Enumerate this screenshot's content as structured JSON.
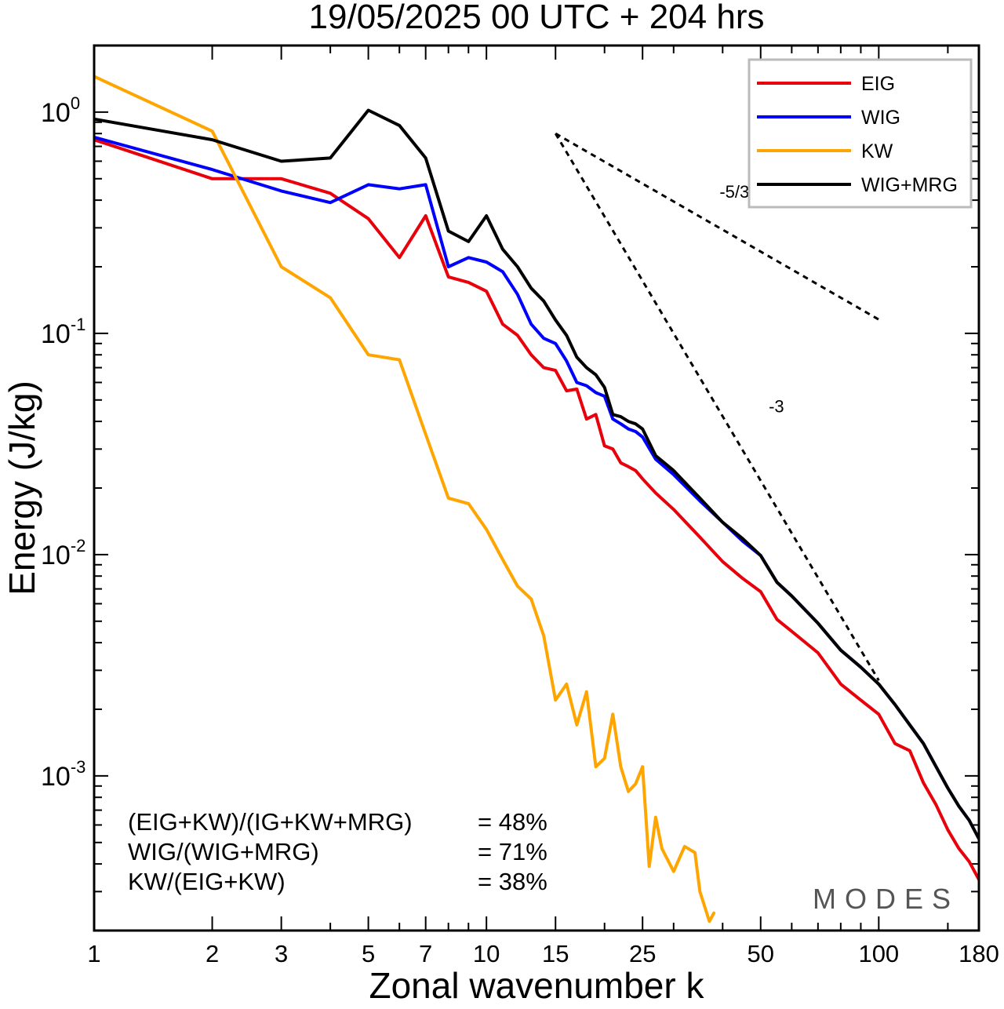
{
  "chart_data": {
    "type": "line",
    "title": "19/05/2025  00 UTC  + 204 hrs",
    "xlabel": "Zonal wavenumber k",
    "ylabel": "Energy (J/kg)",
    "xscale": "log",
    "yscale": "log",
    "xlim": [
      1,
      180
    ],
    "ylim": [
      0.0002,
      2.0
    ],
    "x_ticks": [
      1,
      2,
      3,
      5,
      7,
      10,
      15,
      25,
      50,
      100,
      180
    ],
    "x_tick_labels": [
      "1",
      "2",
      "3",
      "5",
      "7",
      "10",
      "15",
      "25",
      "50",
      "100",
      "180"
    ],
    "y_ticks": [
      {
        "value": 1,
        "base": "10",
        "exp": "0"
      },
      {
        "value": 0.1,
        "base": "10",
        "exp": "-1"
      },
      {
        "value": 0.01,
        "base": "10",
        "exp": "-2"
      },
      {
        "value": 0.001,
        "base": "10",
        "exp": "-3"
      }
    ],
    "grid": false,
    "legend_position": "top-right",
    "series": [
      {
        "name": "EIG",
        "color": "#e8000b",
        "x": [
          1,
          2,
          3,
          4,
          5,
          6,
          7,
          8,
          9,
          10,
          11,
          12,
          13,
          14,
          15,
          16,
          17,
          18,
          19,
          20,
          21,
          22,
          23,
          24,
          25,
          27,
          30,
          35,
          40,
          45,
          50,
          55,
          60,
          70,
          80,
          90,
          100,
          110,
          120,
          130,
          140,
          150,
          160,
          170,
          180
        ],
        "y": [
          0.75,
          0.5,
          0.5,
          0.43,
          0.33,
          0.22,
          0.34,
          0.18,
          0.17,
          0.155,
          0.11,
          0.098,
          0.08,
          0.07,
          0.068,
          0.055,
          0.056,
          0.041,
          0.043,
          0.031,
          0.03,
          0.026,
          0.025,
          0.024,
          0.022,
          0.019,
          0.016,
          0.012,
          0.0093,
          0.0078,
          0.0068,
          0.0051,
          0.0045,
          0.0036,
          0.0026,
          0.0022,
          0.0019,
          0.0014,
          0.0013,
          0.00093,
          0.00074,
          0.00057,
          0.00047,
          0.00041,
          0.00034
        ]
      },
      {
        "name": "WIG",
        "color": "#0000ff",
        "x": [
          1,
          2,
          3,
          4,
          5,
          6,
          7,
          8,
          9,
          10,
          11,
          12,
          13,
          14,
          15,
          16,
          17,
          18,
          19,
          20,
          21,
          22,
          23,
          24,
          25,
          27,
          30,
          35,
          40,
          45,
          50,
          55,
          60,
          70,
          80,
          90,
          100,
          110,
          120,
          130,
          140,
          150,
          160,
          170,
          180
        ],
        "y": [
          0.77,
          0.55,
          0.44,
          0.39,
          0.47,
          0.45,
          0.47,
          0.2,
          0.22,
          0.21,
          0.19,
          0.15,
          0.11,
          0.095,
          0.09,
          0.075,
          0.06,
          0.058,
          0.054,
          0.052,
          0.041,
          0.039,
          0.037,
          0.036,
          0.034,
          0.027,
          0.023,
          0.0175,
          0.014,
          0.0115,
          0.0099,
          0.0075,
          0.0065,
          0.0049,
          0.0037,
          0.0031,
          0.0026,
          0.0021,
          0.0017,
          0.0014,
          0.0011,
          0.00088,
          0.00073,
          0.00063,
          0.00052
        ]
      },
      {
        "name": "KW",
        "color": "#ffa500",
        "x": [
          1,
          2,
          3,
          4,
          5,
          6,
          7,
          8,
          9,
          10,
          11,
          12,
          13,
          14,
          15,
          16,
          17,
          18,
          19,
          20,
          21,
          22,
          23,
          24,
          25,
          26,
          27,
          28,
          30,
          32,
          34,
          35,
          37,
          38
        ],
        "y": [
          1.45,
          0.82,
          0.2,
          0.145,
          0.08,
          0.076,
          0.035,
          0.018,
          0.017,
          0.013,
          0.0095,
          0.0072,
          0.0063,
          0.0043,
          0.0022,
          0.0026,
          0.0017,
          0.0024,
          0.0011,
          0.0012,
          0.0019,
          0.0011,
          0.00085,
          0.00092,
          0.0011,
          0.00039,
          0.00065,
          0.00047,
          0.00037,
          0.00048,
          0.00045,
          0.0003,
          0.00022,
          0.00024
        ]
      },
      {
        "name": "WIG+MRG",
        "color": "#000000",
        "x": [
          1,
          2,
          3,
          4,
          5,
          6,
          7,
          8,
          9,
          10,
          11,
          12,
          13,
          14,
          15,
          16,
          17,
          18,
          19,
          20,
          21,
          22,
          23,
          24,
          25,
          27,
          30,
          35,
          40,
          45,
          50,
          55,
          60,
          70,
          80,
          90,
          100,
          110,
          120,
          130,
          140,
          150,
          160,
          170,
          180
        ],
        "y": [
          0.93,
          0.75,
          0.6,
          0.62,
          1.02,
          0.87,
          0.62,
          0.29,
          0.26,
          0.34,
          0.24,
          0.2,
          0.16,
          0.14,
          0.115,
          0.098,
          0.078,
          0.07,
          0.065,
          0.057,
          0.043,
          0.042,
          0.04,
          0.039,
          0.037,
          0.028,
          0.024,
          0.018,
          0.014,
          0.0118,
          0.0099,
          0.0075,
          0.0065,
          0.0049,
          0.0037,
          0.0031,
          0.0026,
          0.0021,
          0.0017,
          0.0014,
          0.0011,
          0.00088,
          0.00073,
          0.00063,
          0.00052
        ]
      }
    ],
    "reference_slopes": [
      {
        "label": "-5/3",
        "x": [
          15,
          100
        ],
        "y": [
          0.8,
          0.1155
        ]
      },
      {
        "label": "-3",
        "x": [
          15,
          100
        ],
        "y": [
          0.8,
          0.0027
        ]
      }
    ],
    "annotations": [
      {
        "label": "(EIG+KW)/(IG+KW+MRG)",
        "value": "= 48%"
      },
      {
        "label": "WIG/(WIG+MRG)",
        "value": "= 71%"
      },
      {
        "label": "KW/(EIG+KW)",
        "value": "= 38%"
      }
    ],
    "watermark": "MODES"
  }
}
